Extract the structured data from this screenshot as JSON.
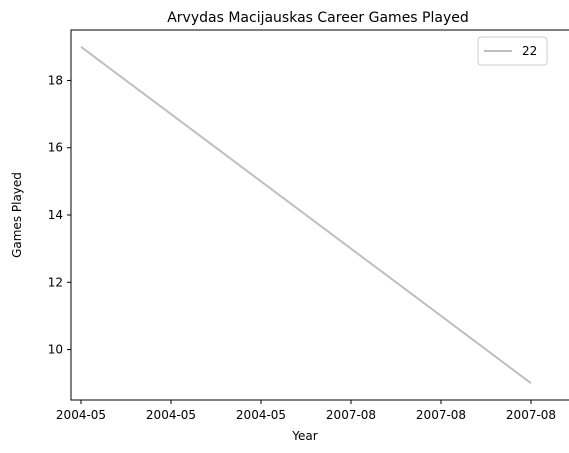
{
  "chart_data": {
    "type": "line",
    "title": "Arvydas Macijauskas Career Games Played",
    "xlabel": "Year",
    "ylabel": "Games Played",
    "x": [
      "2004-05",
      "2007-08"
    ],
    "series": [
      {
        "name": "22",
        "values": [
          19,
          9
        ],
        "color": "#bfbfbf"
      }
    ],
    "xticks": [
      "2004-05",
      "2004-05",
      "2004-05",
      "2007-08",
      "2007-08",
      "2007-08"
    ],
    "yticks": [
      10,
      12,
      14,
      16,
      18
    ],
    "ylim": [
      8.5,
      19.5
    ],
    "grid": false,
    "legend": "top-right"
  }
}
